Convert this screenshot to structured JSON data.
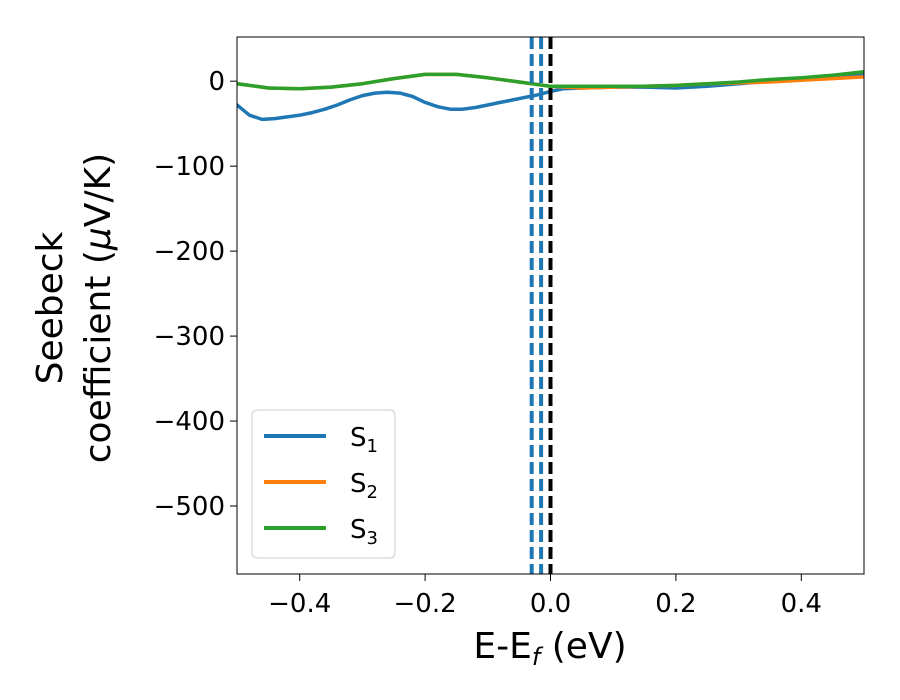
{
  "chart_data": {
    "type": "line",
    "xlabel": "E-E",
    "xlabel_sub": "f",
    "xlabel_unit": " (eV)",
    "ylabel_line1": "Seebeck",
    "ylabel_line2_prefix": "coefficient  (",
    "ylabel_mu": "μ",
    "ylabel_line2_suffix": "V/K)",
    "xlim": [
      -0.5,
      0.5
    ],
    "ylim": [
      -580,
      52
    ],
    "xticks": [
      -0.4,
      -0.2,
      0.0,
      0.2,
      0.4
    ],
    "xtick_labels": [
      "−0.4",
      "−0.2",
      "0.0",
      "0.2",
      "0.4"
    ],
    "yticks": [
      0,
      -100,
      -200,
      -300,
      -400,
      -500
    ],
    "ytick_labels": [
      "0",
      "−100",
      "−200",
      "−300",
      "−400",
      "−500"
    ],
    "grid": false,
    "legend_position": "lower-left",
    "series": [
      {
        "name": "S",
        "subscript": "1",
        "color": "#1f77b4",
        "x": [
          -0.5,
          -0.48,
          -0.46,
          -0.44,
          -0.42,
          -0.4,
          -0.38,
          -0.36,
          -0.34,
          -0.32,
          -0.3,
          -0.28,
          -0.26,
          -0.24,
          -0.22,
          -0.2,
          -0.18,
          -0.16,
          -0.14,
          -0.12,
          -0.1,
          -0.08,
          -0.06,
          -0.04,
          -0.02,
          0.0,
          0.02,
          0.05,
          0.1,
          0.15,
          0.2,
          0.25,
          0.3,
          0.35,
          0.4,
          0.45,
          0.5
        ],
        "y": [
          -28,
          -40,
          -45,
          -44,
          -42,
          -40,
          -37,
          -33,
          -28,
          -22,
          -17,
          -14,
          -13,
          -14,
          -18,
          -25,
          -30,
          -33,
          -33,
          -31,
          -28,
          -25,
          -22,
          -19,
          -16,
          -12,
          -9,
          -8,
          -7,
          -7,
          -8,
          -6,
          -3,
          0,
          3,
          6,
          9
        ]
      },
      {
        "name": "S",
        "subscript": "2",
        "color": "#ff7f0e",
        "x": [
          -0.5,
          -0.45,
          -0.4,
          -0.35,
          -0.3,
          -0.25,
          -0.2,
          -0.15,
          -0.1,
          -0.05,
          0.0,
          0.05,
          0.1,
          0.15,
          0.2,
          0.25,
          0.3,
          0.35,
          0.4,
          0.45,
          0.5
        ],
        "y": [
          -3,
          -8,
          -9,
          -7,
          -3,
          3,
          8,
          8,
          4,
          -1,
          -6,
          -8,
          -7,
          -6,
          -5,
          -3,
          -2,
          -1,
          1,
          3,
          5
        ]
      },
      {
        "name": "S",
        "subscript": "3",
        "color": "#2ca02c",
        "x": [
          -0.5,
          -0.45,
          -0.4,
          -0.35,
          -0.3,
          -0.25,
          -0.2,
          -0.15,
          -0.1,
          -0.05,
          0.0,
          0.05,
          0.1,
          0.15,
          0.2,
          0.25,
          0.3,
          0.35,
          0.4,
          0.45,
          0.5
        ],
        "y": [
          -3,
          -8,
          -9,
          -7,
          -3,
          3,
          8,
          8,
          4,
          -1,
          -6,
          -6,
          -6,
          -6,
          -5,
          -3,
          -1,
          2,
          4,
          7,
          11
        ]
      }
    ],
    "vlines": [
      {
        "x": -0.03,
        "color": "#1f77b4",
        "style": "dashed"
      },
      {
        "x": -0.015,
        "color": "#1f77b4",
        "style": "dashed"
      },
      {
        "x": 0.0,
        "color": "#000000",
        "style": "dashed"
      }
    ]
  }
}
